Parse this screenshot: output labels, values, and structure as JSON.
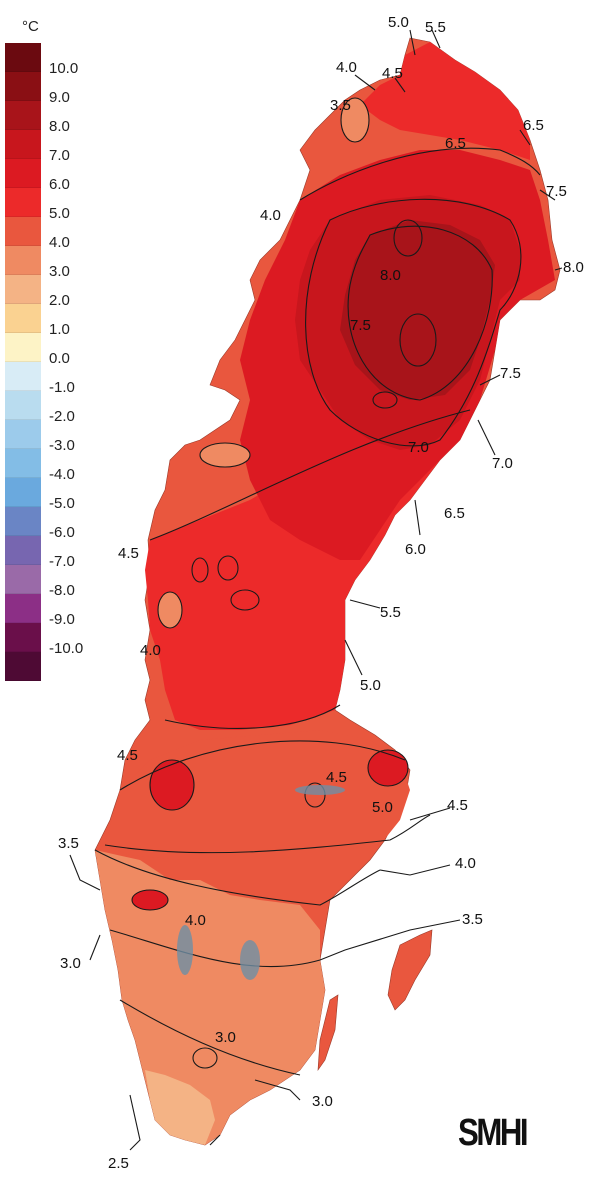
{
  "legend": {
    "unit": "°C",
    "items": [
      {
        "label": "10.0",
        "color": "#6b0a10"
      },
      {
        "label": "9.0",
        "color": "#8a0f14"
      },
      {
        "label": "8.0",
        "color": "#a8141a"
      },
      {
        "label": "7.0",
        "color": "#c8161d"
      },
      {
        "label": "6.0",
        "color": "#dc1a22"
      },
      {
        "label": "5.0",
        "color": "#ec2a2a"
      },
      {
        "label": "4.0",
        "color": "#e9573e"
      },
      {
        "label": "3.0",
        "color": "#ef8a62"
      },
      {
        "label": "2.0",
        "color": "#f4b385"
      },
      {
        "label": "1.0",
        "color": "#fad291"
      },
      {
        "label": "0.0",
        "color": "#fdf3c6"
      },
      {
        "label": "-1.0",
        "color": "#d8ecf6"
      },
      {
        "label": "-2.0",
        "color": "#b9dcef"
      },
      {
        "label": "-3.0",
        "color": "#9ccbeb"
      },
      {
        "label": "-4.0",
        "color": "#83bde6"
      },
      {
        "label": "-5.0",
        "color": "#6aa9de"
      },
      {
        "label": "-6.0",
        "color": "#6a85c5"
      },
      {
        "label": "-7.0",
        "color": "#7766b0"
      },
      {
        "label": "-8.0",
        "color": "#9a6aa8"
      },
      {
        "label": "-9.0",
        "color": "#8c2f86"
      },
      {
        "label": "-10.0",
        "color": "#6a0f4a"
      },
      {
        "label": "",
        "color": "#4e0a34"
      }
    ]
  },
  "contour_labels": {
    "north_5_0": "5.0",
    "north_5_5": "5.5",
    "ne_4_0": "4.0",
    "ne_4_5": "4.5",
    "nw_3_5": "3.5",
    "n_6_5a": "6.5",
    "n_6_5b": "6.5",
    "e_7_5": "7.5",
    "w_4_0": "4.0",
    "e_8_0": "8.0",
    "c_8_0": "8.0",
    "c_7_5": "7.5",
    "e_7_5b": "7.5",
    "c_7_0": "7.0",
    "e_7_0": "7.0",
    "e_6_5": "6.5",
    "c_6_0": "6.0",
    "w_4_5": "4.5",
    "e_5_5": "5.5",
    "w_4_0b": "4.0",
    "e_5_0": "5.0",
    "sw_4_5": "4.5",
    "c_4_5": "4.5",
    "c_5_0": "5.0",
    "e_4_5": "4.5",
    "w_3_5": "3.5",
    "e_4_0": "4.0",
    "c_4_0": "4.0",
    "e_3_5": "3.5",
    "w_3_0": "3.0",
    "s_3_0": "3.0",
    "s_3_0b": "3.0",
    "s_2_5": "2.5"
  },
  "logo": "SMHI"
}
